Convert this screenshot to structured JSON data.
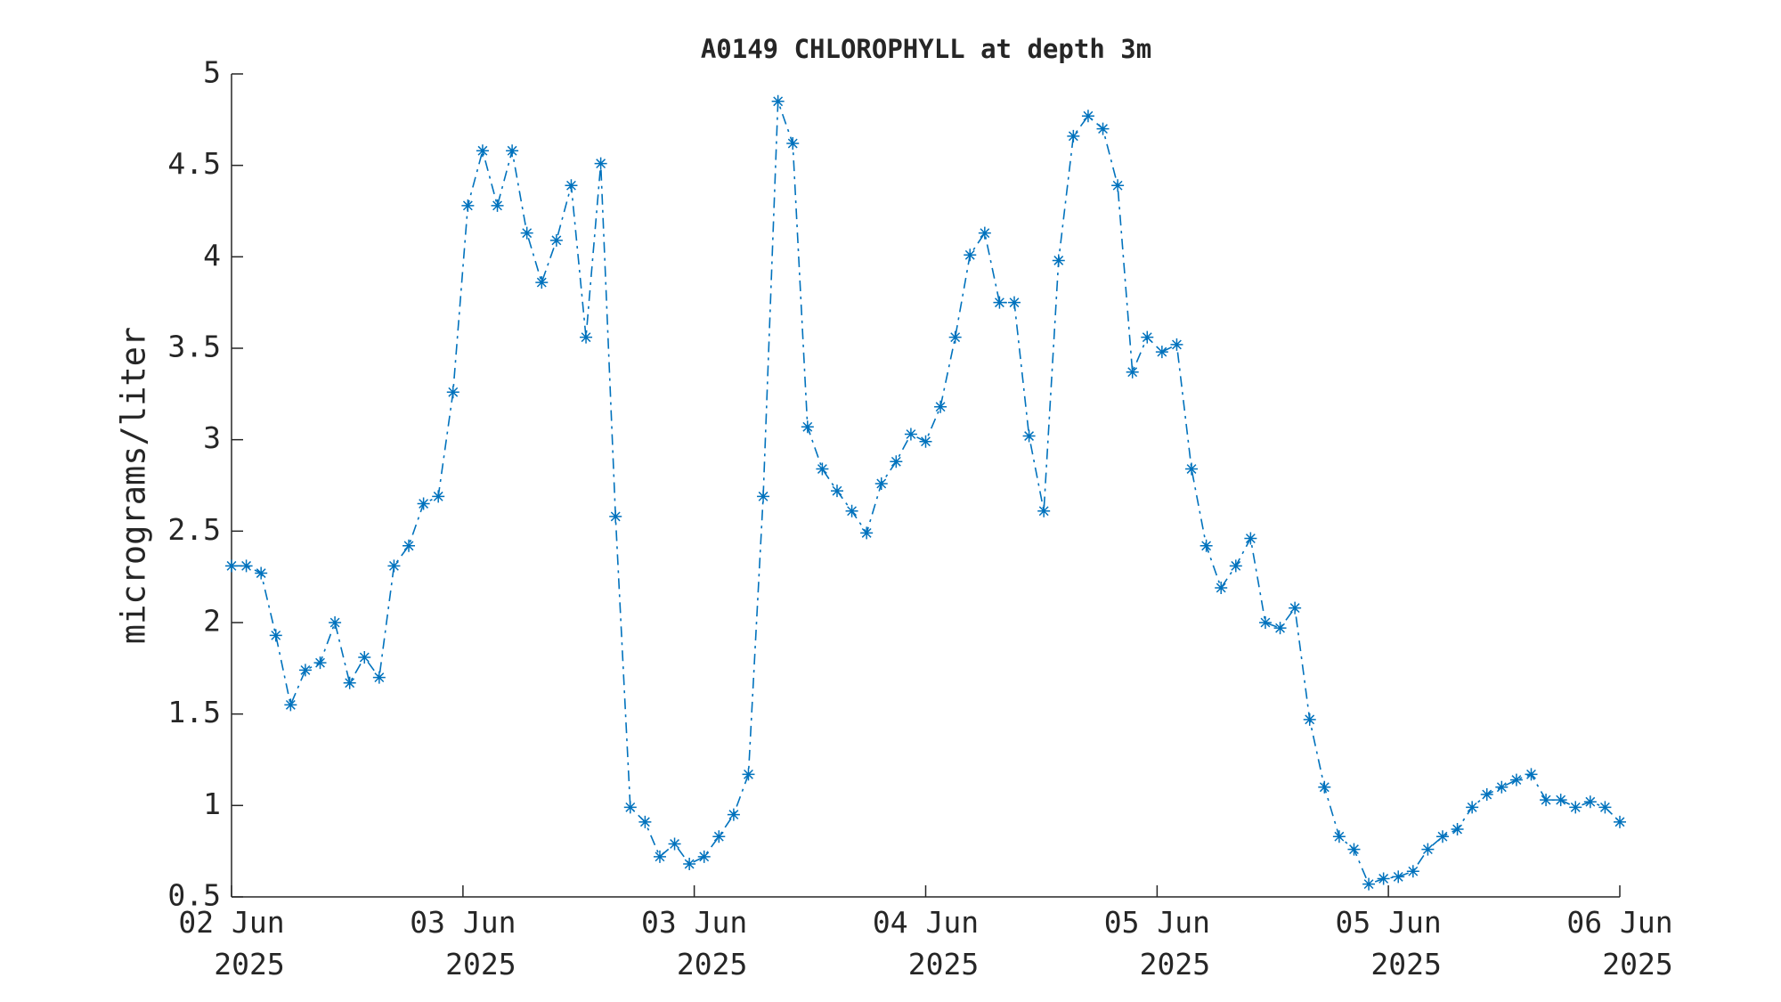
{
  "chart_data": {
    "type": "line",
    "title": "A0149 CHLOROPHYLL at depth 3m",
    "ylabel": "micrograms/liter",
    "series": [
      {
        "name": "A0149 CHLOROPHYLL",
        "color": "#0072bd",
        "marker": "*",
        "linestyle": "dashdot",
        "values": [
          2.31,
          2.31,
          2.27,
          1.93,
          1.55,
          1.74,
          1.78,
          2.0,
          1.67,
          1.81,
          1.7,
          2.31,
          2.42,
          2.65,
          2.69,
          3.26,
          4.28,
          4.58,
          4.28,
          4.58,
          4.13,
          3.86,
          4.09,
          4.39,
          3.56,
          4.51,
          2.58,
          0.99,
          0.91,
          0.72,
          0.79,
          0.68,
          0.72,
          0.83,
          0.95,
          1.17,
          2.69,
          4.85,
          4.62,
          3.07,
          2.84,
          2.72,
          2.61,
          2.49,
          2.76,
          2.88,
          3.03,
          2.99,
          3.18,
          3.56,
          4.01,
          4.13,
          3.75,
          3.75,
          3.02,
          2.61,
          3.98,
          4.66,
          4.77,
          4.7,
          4.39,
          3.37,
          3.56,
          3.48,
          3.52,
          2.84,
          2.42,
          2.19,
          2.31,
          2.46,
          2.0,
          1.97,
          2.08,
          1.47,
          1.1,
          0.83,
          0.76,
          0.57,
          0.6,
          0.61,
          0.64,
          0.76,
          0.83,
          0.87,
          0.99,
          1.06,
          1.1,
          1.14,
          1.17,
          1.03,
          1.03,
          0.99,
          1.02,
          0.99,
          0.91
        ]
      }
    ],
    "x": [
      0,
      1,
      2,
      3,
      4,
      5,
      6,
      7,
      8,
      9,
      10,
      11,
      12,
      13,
      14,
      15,
      16,
      17,
      18,
      19,
      20,
      21,
      22,
      23,
      24,
      25,
      26,
      27,
      28,
      29,
      30,
      31,
      32,
      33,
      34,
      35,
      36,
      37,
      38,
      39,
      40,
      41,
      42,
      43,
      44,
      45,
      46,
      47,
      48,
      49,
      50,
      51,
      52,
      53,
      54,
      55,
      56,
      57,
      58,
      59,
      60,
      61,
      62,
      63,
      64,
      65,
      66,
      67,
      68,
      69,
      70,
      71,
      72,
      73,
      74,
      75,
      76,
      77,
      78,
      79,
      80,
      81,
      82,
      83,
      84,
      85,
      86,
      87,
      88,
      89,
      90,
      91,
      92,
      93,
      94
    ],
    "xlim": [
      0,
      94
    ],
    "xticks": [
      {
        "value": 0,
        "label": "02 Jun\n2025"
      },
      {
        "value": 15.67,
        "label": "03 Jun\n2025"
      },
      {
        "value": 31.33,
        "label": "03 Jun\n2025"
      },
      {
        "value": 47,
        "label": "04 Jun\n2025"
      },
      {
        "value": 62.67,
        "label": "05 Jun\n2025"
      },
      {
        "value": 78.33,
        "label": "05 Jun\n2025"
      },
      {
        "value": 94,
        "label": "06 Jun\n2025"
      }
    ],
    "ylim": [
      0.5,
      5
    ],
    "yticks": [
      0.5,
      1,
      1.5,
      2,
      2.5,
      3,
      3.5,
      4,
      4.5,
      5
    ],
    "grid": false
  }
}
